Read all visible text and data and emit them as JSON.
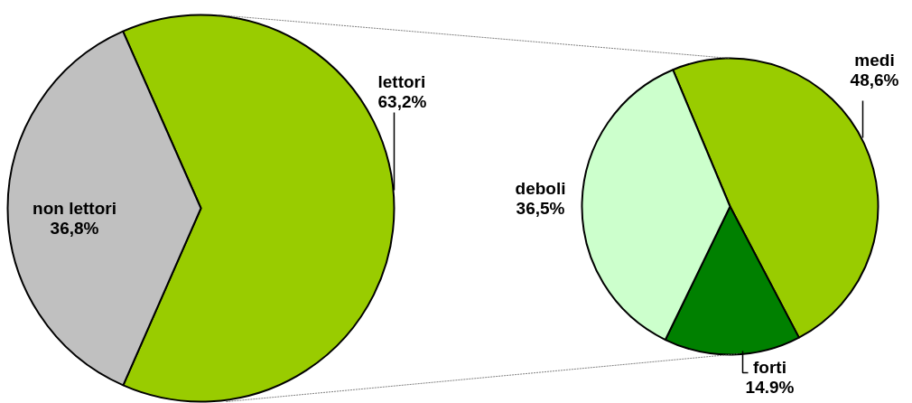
{
  "chart_data": [
    {
      "type": "pie",
      "categories": [
        "lettori",
        "non lettori"
      ],
      "values": [
        63.2,
        36.8
      ],
      "colors": [
        "#99cc00",
        "#c0c0c0"
      ],
      "value_labels": [
        "63,2%",
        "36,8%"
      ]
    },
    {
      "type": "pie",
      "categories": [
        "medi",
        "forti",
        "deboli"
      ],
      "values": [
        48.6,
        14.9,
        36.5
      ],
      "colors": [
        "#99cc00",
        "#008000",
        "#ccffcc"
      ],
      "value_labels": [
        "48,6%",
        "14.9%",
        "36,5%"
      ]
    }
  ]
}
